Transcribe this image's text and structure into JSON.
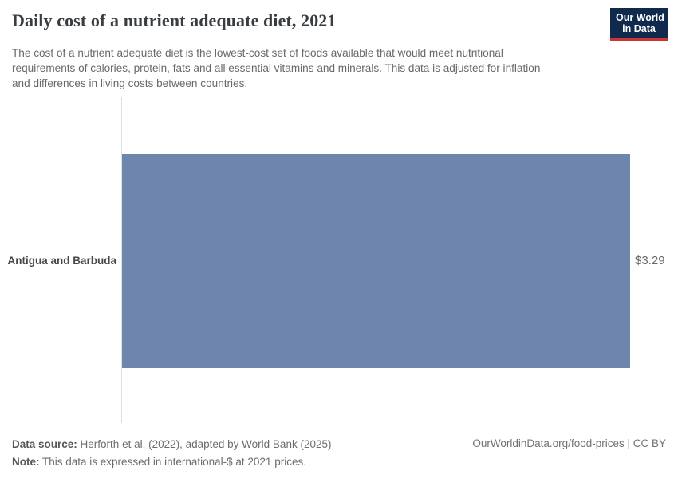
{
  "header": {
    "title": "Daily cost of a nutrient adequate diet, 2021",
    "subtitle_lines": [
      "The cost of a nutrient adequate diet is the lowest-cost set of foods available that would meet nutritional",
      "requirements of calories, protein, fats and all essential vitamins and minerals. This data is adjusted for inflation",
      "and differences in living costs between countries."
    ],
    "logo_line1": "Our World",
    "logo_line2": "in Data"
  },
  "chart_data": {
    "type": "bar",
    "orientation": "horizontal",
    "title": "Daily cost of a nutrient adequate diet, 2021",
    "categories": [
      "Antigua and Barbuda"
    ],
    "values": [
      3.29
    ],
    "value_labels": [
      "$3.29"
    ],
    "unit": "international-$ at 2021 prices",
    "xlim": [
      0,
      3.29
    ],
    "grid": false,
    "legend": "none",
    "bar_color": "#6e86ae"
  },
  "footer": {
    "data_source_label": "Data source:",
    "data_source": "Herforth et al. (2022), adapted by World Bank (2025)",
    "note_label": "Note:",
    "note": "This data is expressed in international-$ at 2021 prices.",
    "right": "OurWorldinData.org/food-prices | CC BY"
  },
  "colors": {
    "bar": "#6e86ae",
    "logo_background": "#102a4e",
    "logo_accent": "#c93434",
    "axis_line": "#dcdee1"
  }
}
